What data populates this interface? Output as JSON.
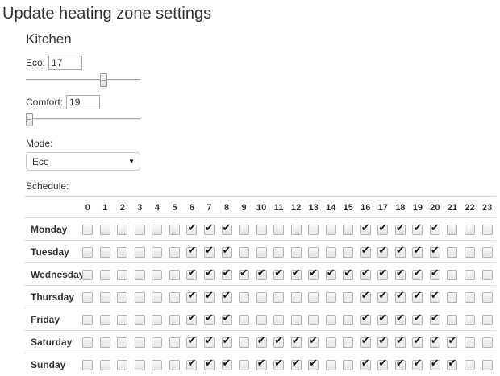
{
  "page": {
    "title": "Update heating zone settings"
  },
  "zone": {
    "name": "Kitchen",
    "eco": {
      "label": "Eco:",
      "value": "17",
      "slider_percent": 69
    },
    "comfort": {
      "label": "Comfort:",
      "value": "19",
      "slider_percent": 0
    },
    "mode": {
      "label": "Mode:",
      "value": "Eco"
    },
    "schedule": {
      "label": "Schedule:",
      "hours": [
        "0",
        "1",
        "2",
        "3",
        "4",
        "5",
        "6",
        "7",
        "8",
        "9",
        "10",
        "11",
        "12",
        "13",
        "14",
        "15",
        "16",
        "17",
        "18",
        "19",
        "20",
        "21",
        "22",
        "23"
      ],
      "days": [
        {
          "name": "Monday",
          "checked_hours": [
            6,
            7,
            8,
            16,
            17,
            18,
            19,
            20
          ]
        },
        {
          "name": "Tuesday",
          "checked_hours": [
            6,
            7,
            8,
            16,
            17,
            18,
            19,
            20
          ]
        },
        {
          "name": "Wednesday",
          "checked_hours": [
            6,
            7,
            8,
            9,
            10,
            11,
            12,
            13,
            14,
            15,
            16,
            17,
            18,
            19,
            20
          ]
        },
        {
          "name": "Thursday",
          "checked_hours": [
            6,
            7,
            8,
            16,
            17,
            18,
            19,
            20
          ]
        },
        {
          "name": "Friday",
          "checked_hours": [
            6,
            7,
            8,
            16,
            17,
            18,
            19,
            20
          ]
        },
        {
          "name": "Saturday",
          "checked_hours": [
            6,
            7,
            8,
            10,
            11,
            12,
            13,
            16,
            17,
            18,
            19,
            20,
            21
          ]
        },
        {
          "name": "Sunday",
          "checked_hours": [
            6,
            7,
            8,
            10,
            11,
            12,
            13,
            16,
            17,
            18,
            19,
            20,
            21
          ]
        }
      ]
    }
  },
  "colors": {
    "text": "#333333",
    "table_border": "#dddddd",
    "checkbox_border": "#b4b4b4",
    "check_mark": "#161616",
    "slider_track": "#a6a6a6"
  }
}
